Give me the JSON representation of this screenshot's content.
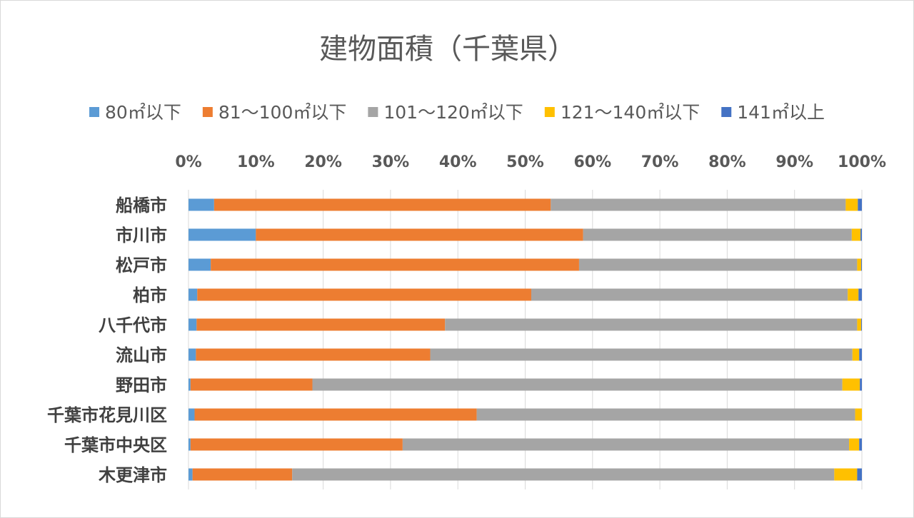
{
  "chart_data": {
    "type": "bar",
    "orientation": "horizontal",
    "stacked": "percent",
    "title": "建物面積（千葉県）",
    "xlim": [
      0,
      100
    ],
    "x_ticks": [
      "0%",
      "10%",
      "20%",
      "30%",
      "40%",
      "50%",
      "60%",
      "70%",
      "80%",
      "90%",
      "100%"
    ],
    "x_axis_position": "top",
    "grid": true,
    "legend_position": "top",
    "categories": [
      "船橋市",
      "市川市",
      "松戸市",
      "柏市",
      "八千代市",
      "流山市",
      "野田市",
      "千葉市花見川区",
      "千葉市中央区",
      "木更津市"
    ],
    "series": [
      {
        "name": "80㎡以下",
        "color": "#5b9bd5",
        "values": [
          3.8,
          10.0,
          3.3,
          1.3,
          1.2,
          1.1,
          0.3,
          0.9,
          0.3,
          0.6
        ]
      },
      {
        "name": "81～100㎡以下",
        "color": "#ed7d31",
        "values": [
          50.0,
          48.6,
          54.7,
          49.6,
          36.9,
          34.8,
          18.1,
          41.9,
          31.5,
          14.8
        ]
      },
      {
        "name": "101～120㎡以下",
        "color": "#a5a5a5",
        "values": [
          43.8,
          39.9,
          41.3,
          47.0,
          61.2,
          62.7,
          78.7,
          56.2,
          66.3,
          80.5
        ]
      },
      {
        "name": "121～140㎡以下",
        "color": "#ffc000",
        "values": [
          1.8,
          1.3,
          0.6,
          1.6,
          0.6,
          1.0,
          2.6,
          1.0,
          1.5,
          3.4
        ]
      },
      {
        "name": "141㎡以上",
        "color": "#4472c4",
        "values": [
          0.6,
          0.2,
          0.1,
          0.5,
          0.1,
          0.4,
          0.3,
          0.0,
          0.4,
          0.7
        ]
      }
    ]
  }
}
